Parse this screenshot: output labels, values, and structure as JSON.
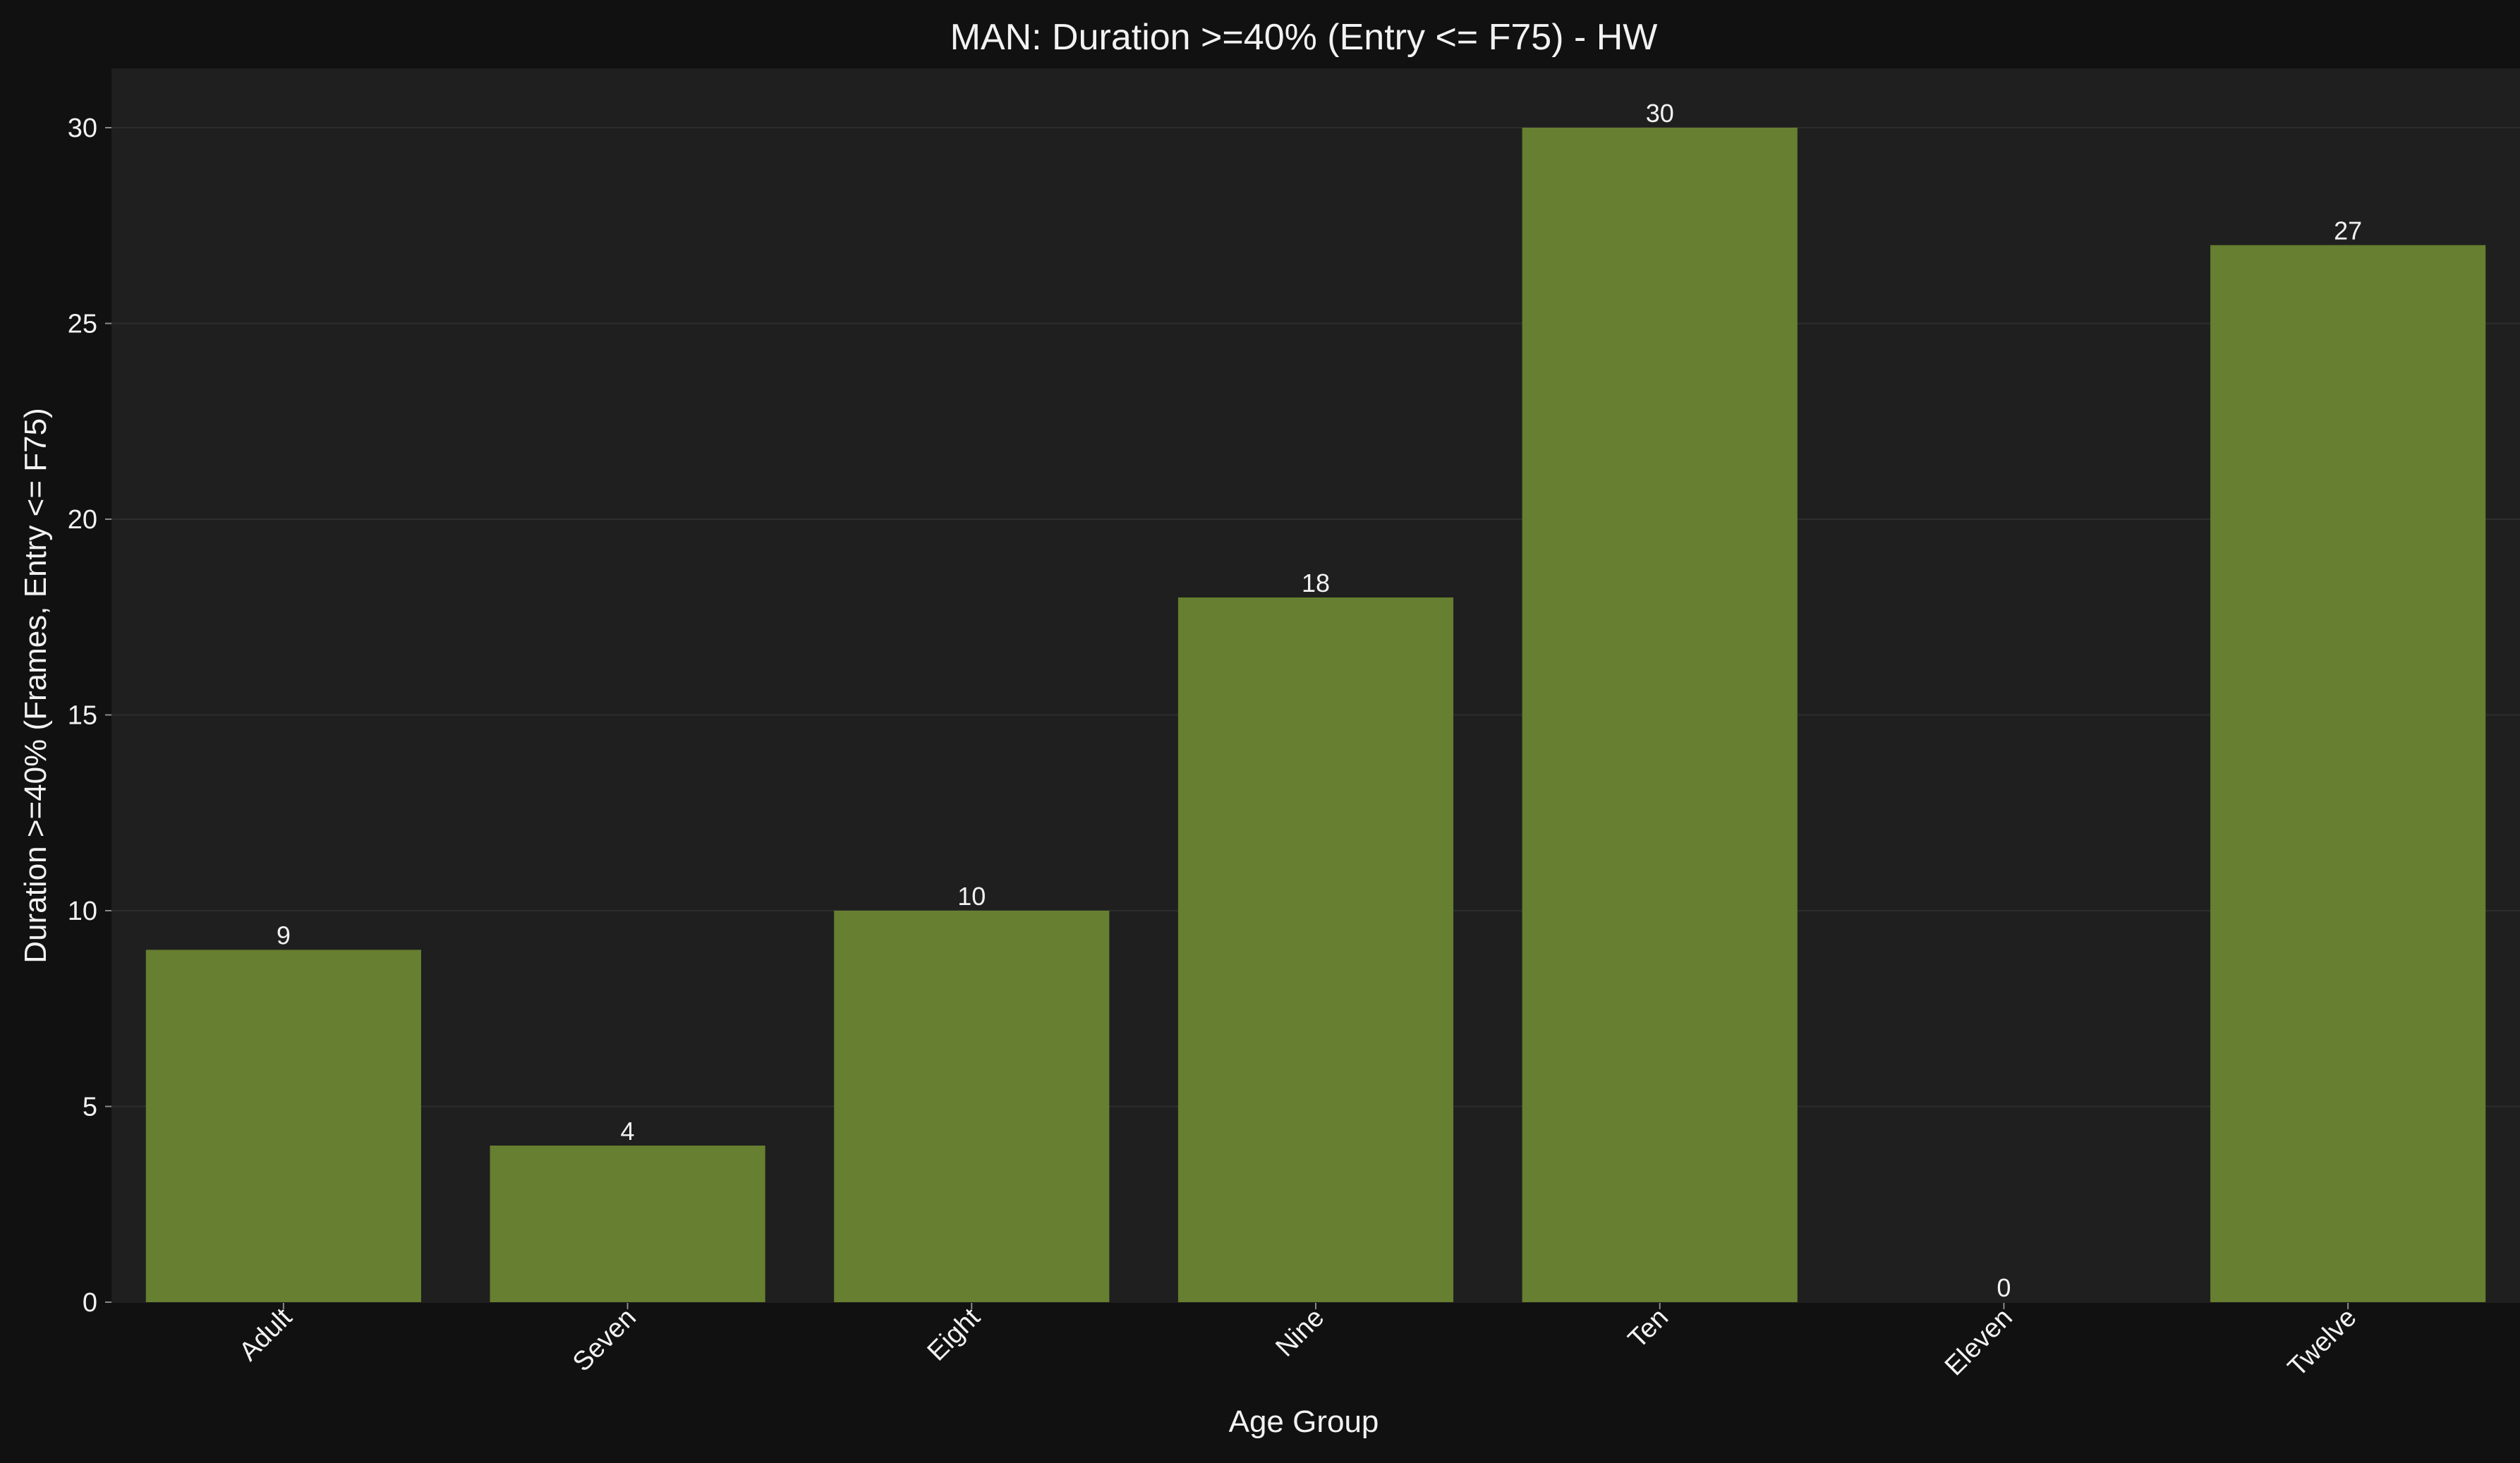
{
  "chart_data": {
    "type": "bar",
    "title": "MAN: Duration >=40% (Entry <= F75) - HW",
    "xlabel": "Age Group",
    "ylabel": "Duration >=40% (Frames, Entry <= F75)",
    "categories": [
      "Adult",
      "Seven",
      "Eight",
      "Nine",
      "Ten",
      "Eleven",
      "Twelve"
    ],
    "values": [
      9,
      4,
      10,
      18,
      30,
      0,
      27
    ],
    "data_labels": [
      "9",
      "4",
      "10",
      "18",
      "30",
      "0",
      "27"
    ],
    "ylim": [
      0,
      31.5
    ],
    "yticks": [
      0,
      5,
      10,
      15,
      20,
      25,
      30
    ],
    "ytick_labels": [
      "0",
      "5",
      "10",
      "15",
      "20",
      "25",
      "30"
    ],
    "grid": "horizontal",
    "legend": "none",
    "colors": {
      "figure_background": "#111111",
      "plot_background": "#1f1f1f",
      "bar": "#667f30",
      "grid": "#2e2e2e",
      "text": "#f2f2f2"
    }
  }
}
